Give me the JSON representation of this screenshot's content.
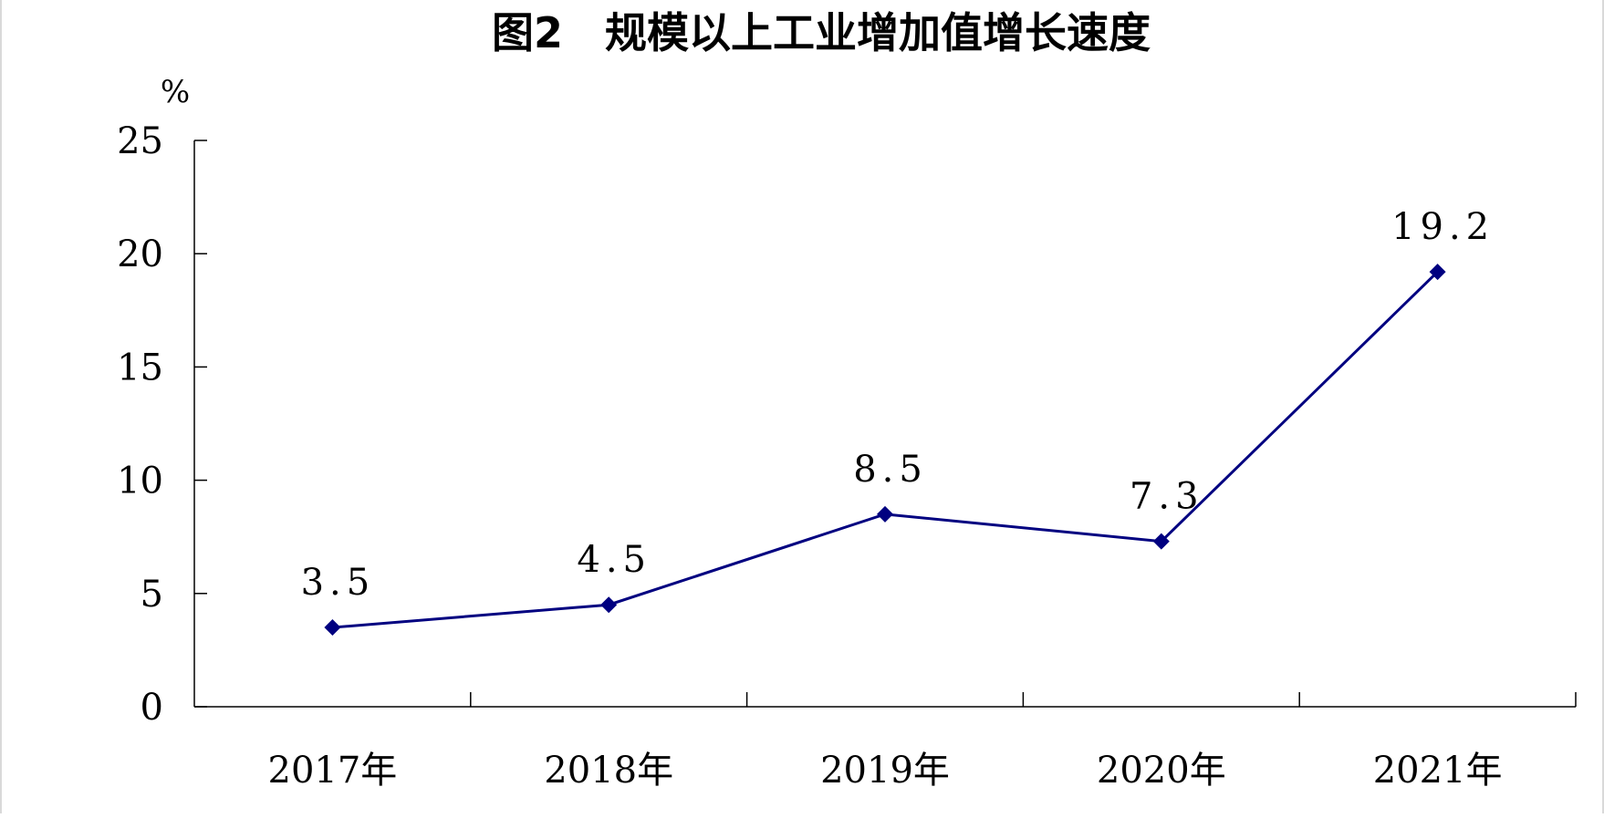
{
  "chart_data": {
    "type": "line",
    "title": "图2　规模以上工业增加值增长速度",
    "unit_label": "%",
    "categories": [
      "2017年",
      "2018年",
      "2019年",
      "2020年",
      "2021年"
    ],
    "series": [
      {
        "values": [
          3.5,
          4.5,
          8.5,
          7.3,
          19.2
        ]
      }
    ],
    "data_labels": [
      "3.5",
      "4.5",
      "8.5",
      "7.3",
      "19.2"
    ],
    "yticks": [
      "0",
      "5",
      "10",
      "15",
      "20",
      "25"
    ],
    "ylim": [
      0,
      25
    ],
    "grid": false,
    "legend": "none",
    "colors": {
      "line": "#000080",
      "marker": "#000080",
      "axis": "#000000"
    }
  }
}
